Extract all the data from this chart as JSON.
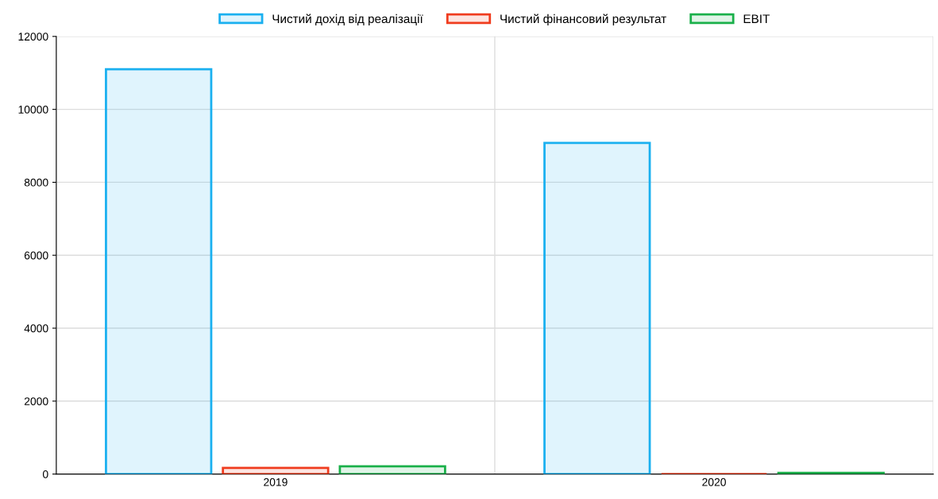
{
  "chart_data": {
    "type": "bar",
    "categories": [
      "2019",
      "2020"
    ],
    "series": [
      {
        "name": "Чистий дохід від реалізації",
        "color": "#1ab0f0",
        "values": [
          11100,
          9080
        ]
      },
      {
        "name": "Чистий фінансовий результат",
        "color": "#f03c1e",
        "values": [
          170,
          0
        ]
      },
      {
        "name": "EBIT",
        "color": "#1ab04a",
        "values": [
          210,
          30
        ]
      }
    ],
    "ylim": [
      0,
      12000
    ],
    "yticks": [
      0,
      2000,
      4000,
      6000,
      8000,
      10000,
      12000
    ],
    "grid": true,
    "legend": "top"
  }
}
